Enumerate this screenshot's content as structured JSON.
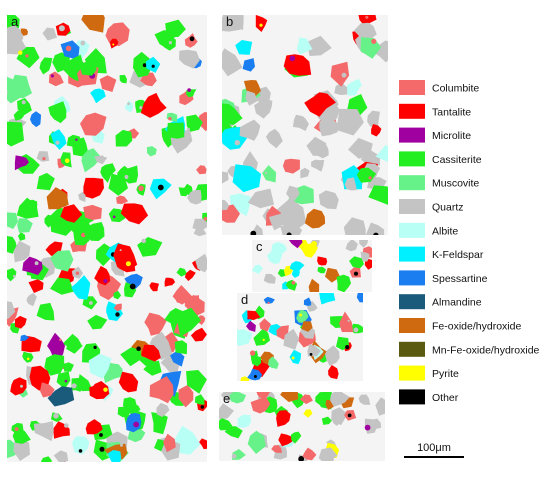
{
  "panels": [
    {
      "id": "a",
      "label": "a"
    },
    {
      "id": "b",
      "label": "b"
    },
    {
      "id": "c",
      "label": "c"
    },
    {
      "id": "d",
      "label": "d"
    },
    {
      "id": "e",
      "label": "e"
    }
  ],
  "legend": [
    {
      "label": "Columbite",
      "color": "#f46a6a"
    },
    {
      "label": "Tantalite",
      "color": "#ff0000"
    },
    {
      "label": "Microlite",
      "color": "#a000a0"
    },
    {
      "label": "Cassiterite",
      "color": "#22ee22"
    },
    {
      "label": "Muscovite",
      "color": "#66f288"
    },
    {
      "label": "Quartz",
      "color": "#c4c4c4"
    },
    {
      "label": "Albite",
      "color": "#b8fff6"
    },
    {
      "label": "K-Feldspar",
      "color": "#00f0ff"
    },
    {
      "label": "Spessartine",
      "color": "#1a7ef0"
    },
    {
      "label": "Almandine",
      "color": "#1a5a7a"
    },
    {
      "label": "Fe-oxide/hydroxide",
      "color": "#d06a10"
    },
    {
      "label": "Mn-Fe-oxide/hydroxide",
      "color": "#5a5a10"
    },
    {
      "label": "Pyrite",
      "color": "#ffff00"
    },
    {
      "label": "Other",
      "color": "#000000"
    }
  ],
  "scale_bar": {
    "label": "100μm"
  }
}
